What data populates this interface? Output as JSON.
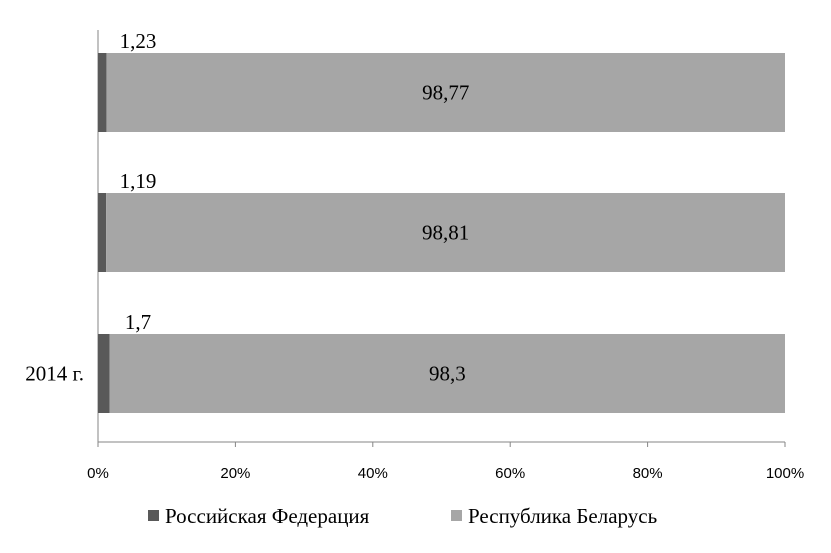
{
  "chart_data": {
    "type": "bar",
    "orientation": "horizontal",
    "stacked": "percent",
    "categories": [
      "",
      "",
      "2014 г."
    ],
    "series": [
      {
        "name": "Российская Федерация",
        "values": [
          1.23,
          1.19,
          1.7
        ],
        "labels": [
          "1,23",
          "1,19",
          "1,7"
        ],
        "color": "#595959"
      },
      {
        "name": "Республика Беларусь",
        "values": [
          98.77,
          98.81,
          98.3
        ],
        "labels": [
          "98,77",
          "98,81",
          "98,3"
        ],
        "color": "#a6a6a6"
      }
    ],
    "xlim": [
      0,
      100
    ],
    "xticks": [
      "0%",
      "20%",
      "40%",
      "60%",
      "80%",
      "100%"
    ],
    "grid": false,
    "legend_position": "bottom",
    "title": "",
    "xlabel": "",
    "ylabel": ""
  }
}
